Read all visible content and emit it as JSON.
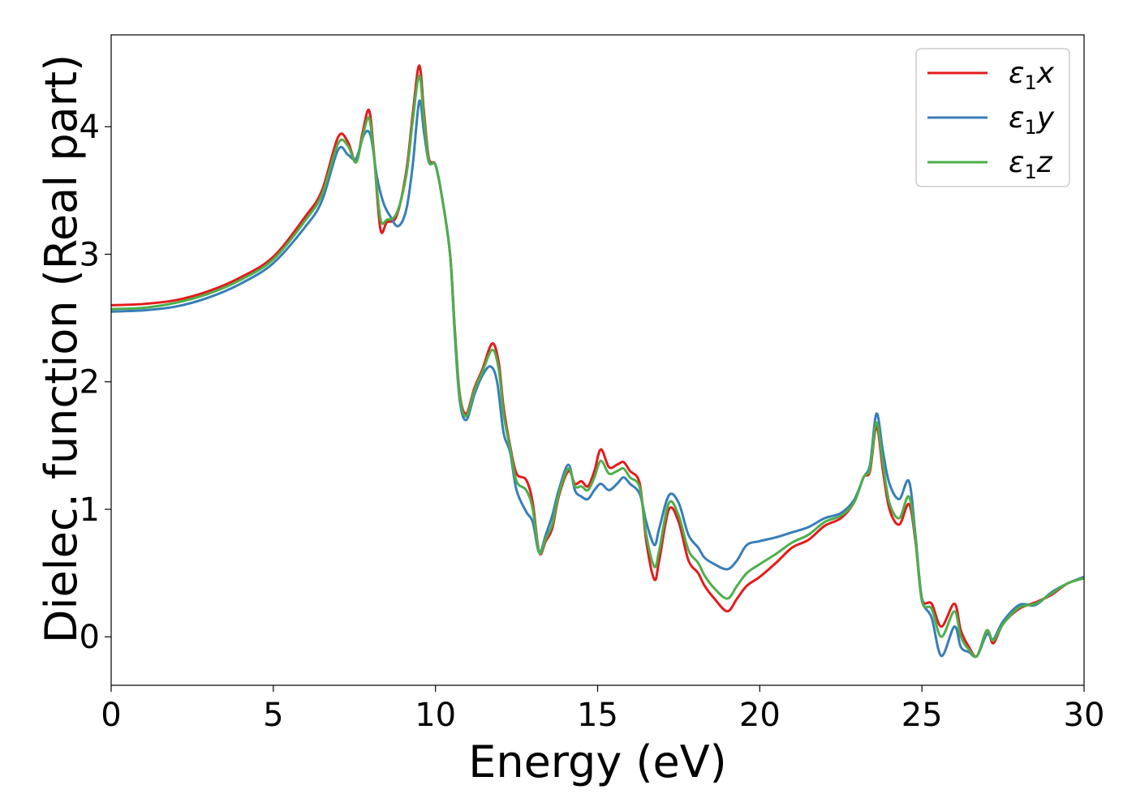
{
  "chart_data": {
    "type": "line",
    "xlabel": "Energy (eV)",
    "ylabel": "Dielec. function (Real part)",
    "xlim": [
      0,
      30
    ],
    "ylim": [
      -0.38,
      4.72
    ],
    "xticks": [
      0,
      5,
      10,
      15,
      20,
      25,
      30
    ],
    "yticks": [
      0,
      1,
      2,
      3,
      4
    ],
    "grid": false,
    "legend_position": "top-right",
    "series": [
      {
        "name": "ε1x",
        "legend_symbol": "ε",
        "legend_sub": "1",
        "legend_var": "x",
        "color": "#e41a1c",
        "points": [
          [
            0,
            2.6
          ],
          [
            1,
            2.61
          ],
          [
            2,
            2.64
          ],
          [
            3,
            2.71
          ],
          [
            4,
            2.82
          ],
          [
            5,
            2.98
          ],
          [
            6,
            3.3
          ],
          [
            6.5,
            3.5
          ],
          [
            7,
            3.92
          ],
          [
            7.3,
            3.88
          ],
          [
            7.55,
            3.72
          ],
          [
            7.75,
            3.95
          ],
          [
            7.95,
            4.13
          ],
          [
            8.1,
            3.8
          ],
          [
            8.3,
            3.2
          ],
          [
            8.5,
            3.25
          ],
          [
            8.8,
            3.3
          ],
          [
            9.1,
            3.65
          ],
          [
            9.3,
            4.1
          ],
          [
            9.5,
            4.48
          ],
          [
            9.65,
            4.1
          ],
          [
            9.8,
            3.75
          ],
          [
            10,
            3.7
          ],
          [
            10.2,
            3.45
          ],
          [
            10.45,
            3.0
          ],
          [
            10.6,
            2.4
          ],
          [
            10.75,
            1.9
          ],
          [
            10.95,
            1.75
          ],
          [
            11.2,
            1.95
          ],
          [
            11.45,
            2.1
          ],
          [
            11.75,
            2.3
          ],
          [
            11.95,
            2.15
          ],
          [
            12.1,
            1.8
          ],
          [
            12.3,
            1.5
          ],
          [
            12.5,
            1.28
          ],
          [
            12.8,
            1.23
          ],
          [
            13.0,
            1.05
          ],
          [
            13.2,
            0.66
          ],
          [
            13.4,
            0.75
          ],
          [
            13.6,
            0.85
          ],
          [
            13.8,
            1.1
          ],
          [
            14.1,
            1.3
          ],
          [
            14.3,
            1.2
          ],
          [
            14.5,
            1.22
          ],
          [
            14.7,
            1.18
          ],
          [
            14.9,
            1.3
          ],
          [
            15.1,
            1.47
          ],
          [
            15.35,
            1.33
          ],
          [
            15.6,
            1.35
          ],
          [
            15.8,
            1.37
          ],
          [
            16.0,
            1.3
          ],
          [
            16.3,
            1.2
          ],
          [
            16.5,
            0.75
          ],
          [
            16.75,
            0.45
          ],
          [
            16.9,
            0.6
          ],
          [
            17.2,
            1.0
          ],
          [
            17.5,
            0.9
          ],
          [
            17.8,
            0.6
          ],
          [
            18.1,
            0.5
          ],
          [
            18.3,
            0.4
          ],
          [
            18.6,
            0.3
          ],
          [
            19.0,
            0.2
          ],
          [
            19.3,
            0.3
          ],
          [
            19.6,
            0.4
          ],
          [
            20.0,
            0.47
          ],
          [
            20.5,
            0.58
          ],
          [
            21.0,
            0.7
          ],
          [
            21.5,
            0.76
          ],
          [
            22.0,
            0.87
          ],
          [
            22.5,
            0.93
          ],
          [
            22.9,
            1.05
          ],
          [
            23.2,
            1.25
          ],
          [
            23.4,
            1.3
          ],
          [
            23.6,
            1.65
          ],
          [
            23.8,
            1.3
          ],
          [
            24.0,
            1.0
          ],
          [
            24.3,
            0.88
          ],
          [
            24.6,
            1.04
          ],
          [
            24.8,
            0.75
          ],
          [
            25.0,
            0.3
          ],
          [
            25.3,
            0.26
          ],
          [
            25.6,
            0.08
          ],
          [
            26.0,
            0.26
          ],
          [
            26.2,
            0.05
          ],
          [
            26.45,
            -0.08
          ],
          [
            26.7,
            -0.15
          ],
          [
            27.0,
            0.05
          ],
          [
            27.2,
            -0.05
          ],
          [
            27.5,
            0.1
          ],
          [
            28,
            0.22
          ],
          [
            28.5,
            0.27
          ],
          [
            29,
            0.33
          ],
          [
            29.5,
            0.42
          ],
          [
            30,
            0.46
          ]
        ]
      },
      {
        "name": "ε1y",
        "legend_symbol": "ε",
        "legend_sub": "1",
        "legend_var": "y",
        "color": "#377eb8",
        "points": [
          [
            0,
            2.55
          ],
          [
            1,
            2.56
          ],
          [
            2,
            2.59
          ],
          [
            3,
            2.66
          ],
          [
            4,
            2.77
          ],
          [
            5,
            2.93
          ],
          [
            6,
            3.22
          ],
          [
            6.5,
            3.42
          ],
          [
            7,
            3.82
          ],
          [
            7.3,
            3.78
          ],
          [
            7.55,
            3.75
          ],
          [
            7.8,
            3.94
          ],
          [
            8.0,
            3.93
          ],
          [
            8.2,
            3.6
          ],
          [
            8.4,
            3.4
          ],
          [
            8.6,
            3.3
          ],
          [
            8.85,
            3.22
          ],
          [
            9.1,
            3.35
          ],
          [
            9.3,
            3.7
          ],
          [
            9.5,
            4.2
          ],
          [
            9.65,
            3.95
          ],
          [
            9.8,
            3.72
          ],
          [
            10,
            3.7
          ],
          [
            10.2,
            3.45
          ],
          [
            10.45,
            3.0
          ],
          [
            10.6,
            2.35
          ],
          [
            10.75,
            1.85
          ],
          [
            10.95,
            1.7
          ],
          [
            11.2,
            1.9
          ],
          [
            11.45,
            2.05
          ],
          [
            11.7,
            2.12
          ],
          [
            11.9,
            2.0
          ],
          [
            12.1,
            1.6
          ],
          [
            12.3,
            1.45
          ],
          [
            12.5,
            1.15
          ],
          [
            12.8,
            0.98
          ],
          [
            13.0,
            0.9
          ],
          [
            13.2,
            0.66
          ],
          [
            13.4,
            0.8
          ],
          [
            13.6,
            0.95
          ],
          [
            13.8,
            1.15
          ],
          [
            14.1,
            1.35
          ],
          [
            14.3,
            1.15
          ],
          [
            14.5,
            1.1
          ],
          [
            14.7,
            1.08
          ],
          [
            14.9,
            1.15
          ],
          [
            15.1,
            1.2
          ],
          [
            15.35,
            1.15
          ],
          [
            15.6,
            1.2
          ],
          [
            15.8,
            1.25
          ],
          [
            16.0,
            1.2
          ],
          [
            16.3,
            1.12
          ],
          [
            16.5,
            0.9
          ],
          [
            16.75,
            0.72
          ],
          [
            16.9,
            0.85
          ],
          [
            17.2,
            1.11
          ],
          [
            17.5,
            1.05
          ],
          [
            17.8,
            0.8
          ],
          [
            18.1,
            0.7
          ],
          [
            18.3,
            0.62
          ],
          [
            18.6,
            0.57
          ],
          [
            19.0,
            0.53
          ],
          [
            19.3,
            0.6
          ],
          [
            19.6,
            0.72
          ],
          [
            20.0,
            0.75
          ],
          [
            20.5,
            0.78
          ],
          [
            21.0,
            0.82
          ],
          [
            21.5,
            0.86
          ],
          [
            22.0,
            0.93
          ],
          [
            22.5,
            0.97
          ],
          [
            22.9,
            1.07
          ],
          [
            23.2,
            1.25
          ],
          [
            23.4,
            1.35
          ],
          [
            23.6,
            1.75
          ],
          [
            23.8,
            1.45
          ],
          [
            24.0,
            1.2
          ],
          [
            24.3,
            1.08
          ],
          [
            24.6,
            1.22
          ],
          [
            24.8,
            0.8
          ],
          [
            25.0,
            0.3
          ],
          [
            25.3,
            0.15
          ],
          [
            25.6,
            -0.15
          ],
          [
            26.0,
            0.08
          ],
          [
            26.2,
            -0.08
          ],
          [
            26.45,
            -0.12
          ],
          [
            26.7,
            -0.15
          ],
          [
            27.0,
            0.02
          ],
          [
            27.2,
            -0.02
          ],
          [
            27.5,
            0.12
          ],
          [
            28,
            0.25
          ],
          [
            28.5,
            0.25
          ],
          [
            29,
            0.35
          ],
          [
            29.5,
            0.42
          ],
          [
            30,
            0.47
          ]
        ]
      },
      {
        "name": "ε1z",
        "legend_symbol": "ε",
        "legend_sub": "1",
        "legend_var": "z",
        "color": "#4daf4a",
        "points": [
          [
            0,
            2.57
          ],
          [
            1,
            2.58
          ],
          [
            2,
            2.62
          ],
          [
            3,
            2.69
          ],
          [
            4,
            2.8
          ],
          [
            5,
            2.96
          ],
          [
            6,
            3.27
          ],
          [
            6.5,
            3.47
          ],
          [
            7,
            3.87
          ],
          [
            7.3,
            3.85
          ],
          [
            7.55,
            3.72
          ],
          [
            7.75,
            3.92
          ],
          [
            7.95,
            4.07
          ],
          [
            8.1,
            3.78
          ],
          [
            8.3,
            3.28
          ],
          [
            8.5,
            3.27
          ],
          [
            8.8,
            3.32
          ],
          [
            9.1,
            3.62
          ],
          [
            9.3,
            4.05
          ],
          [
            9.5,
            4.4
          ],
          [
            9.65,
            4.05
          ],
          [
            9.8,
            3.73
          ],
          [
            10,
            3.7
          ],
          [
            10.2,
            3.45
          ],
          [
            10.45,
            3.0
          ],
          [
            10.6,
            2.38
          ],
          [
            10.75,
            1.88
          ],
          [
            10.95,
            1.73
          ],
          [
            11.2,
            1.93
          ],
          [
            11.45,
            2.08
          ],
          [
            11.75,
            2.25
          ],
          [
            11.95,
            2.1
          ],
          [
            12.1,
            1.75
          ],
          [
            12.3,
            1.48
          ],
          [
            12.5,
            1.22
          ],
          [
            12.8,
            1.15
          ],
          [
            13.0,
            1.0
          ],
          [
            13.2,
            0.66
          ],
          [
            13.4,
            0.77
          ],
          [
            13.6,
            0.88
          ],
          [
            13.8,
            1.12
          ],
          [
            14.1,
            1.32
          ],
          [
            14.3,
            1.18
          ],
          [
            14.5,
            1.18
          ],
          [
            14.7,
            1.15
          ],
          [
            14.9,
            1.25
          ],
          [
            15.1,
            1.38
          ],
          [
            15.35,
            1.28
          ],
          [
            15.6,
            1.3
          ],
          [
            15.8,
            1.32
          ],
          [
            16.0,
            1.25
          ],
          [
            16.3,
            1.17
          ],
          [
            16.5,
            0.8
          ],
          [
            16.75,
            0.55
          ],
          [
            16.9,
            0.68
          ],
          [
            17.2,
            1.05
          ],
          [
            17.5,
            0.95
          ],
          [
            17.8,
            0.68
          ],
          [
            18.1,
            0.58
          ],
          [
            18.3,
            0.48
          ],
          [
            18.6,
            0.38
          ],
          [
            19.0,
            0.3
          ],
          [
            19.3,
            0.4
          ],
          [
            19.6,
            0.5
          ],
          [
            20.0,
            0.57
          ],
          [
            20.5,
            0.65
          ],
          [
            21.0,
            0.74
          ],
          [
            21.5,
            0.8
          ],
          [
            22.0,
            0.9
          ],
          [
            22.5,
            0.95
          ],
          [
            22.9,
            1.05
          ],
          [
            23.2,
            1.25
          ],
          [
            23.4,
            1.32
          ],
          [
            23.6,
            1.68
          ],
          [
            23.8,
            1.35
          ],
          [
            24.0,
            1.05
          ],
          [
            24.3,
            0.93
          ],
          [
            24.6,
            1.1
          ],
          [
            24.8,
            0.77
          ],
          [
            25.0,
            0.28
          ],
          [
            25.3,
            0.22
          ],
          [
            25.6,
            0.0
          ],
          [
            26.0,
            0.2
          ],
          [
            26.2,
            0.0
          ],
          [
            26.45,
            -0.1
          ],
          [
            26.7,
            -0.15
          ],
          [
            27.0,
            0.05
          ],
          [
            27.2,
            -0.03
          ],
          [
            27.5,
            0.1
          ],
          [
            28,
            0.23
          ],
          [
            28.5,
            0.26
          ],
          [
            29,
            0.34
          ],
          [
            29.5,
            0.42
          ],
          [
            30,
            0.46
          ]
        ]
      }
    ]
  }
}
